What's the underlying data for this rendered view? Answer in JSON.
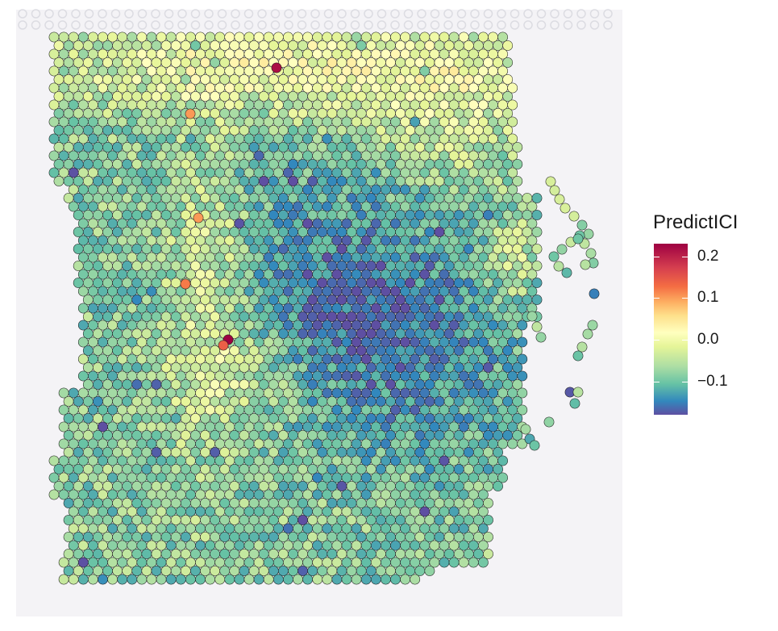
{
  "chart_data": {
    "type": "scatter",
    "subtype": "spatial hexagonal spot map over tissue image",
    "title": "",
    "xlabel": "",
    "ylabel": "",
    "axes_visible": false,
    "grid": false,
    "legend": {
      "title": "PredictICI",
      "placement": "right",
      "type": "continuous colorbar",
      "ticks": [
        "0.2",
        "0.1",
        "0.0",
        "−0.1"
      ],
      "tick_values": [
        0.2,
        0.1,
        0.0,
        -0.1
      ],
      "range": [
        -0.18,
        0.23
      ],
      "palette": "Spectral",
      "colors": [
        "#5e4fa2",
        "#3288bd",
        "#66c2a5",
        "#abdda4",
        "#e6f598",
        "#ffffbf",
        "#fee08b",
        "#fdae61",
        "#f46d43",
        "#d53e4f",
        "#9e0142"
      ]
    },
    "spot_outline_color": "#1a1a1a",
    "notes_on_values": "Per-spot PredictICI score; mostly between -0.15 and 0.05, with high values (~0.1 to 0.23) concentrated along the upper band and a vertical streak left of center, and low values (~-0.15) in the central region.",
    "hotspots": [
      {
        "region": "left-center streak",
        "value": 0.23
      },
      {
        "region": "top band",
        "value": 0.2
      },
      {
        "region": "left middle",
        "value": 0.15
      },
      {
        "region": "upper left",
        "value": 0.13
      }
    ]
  }
}
